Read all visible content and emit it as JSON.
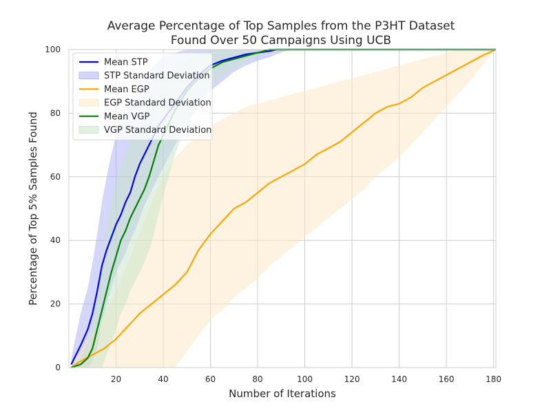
{
  "chart_data": {
    "type": "line",
    "title": "Average Percentage of Top Samples from the P3HT Dataset",
    "subtitle": "Found Over 50 Campaigns Using UCB",
    "xlabel": "Number of Iterations",
    "ylabel": "Percentage of Top 5% Samples Found",
    "xlim": [
      0,
      181
    ],
    "ylim": [
      0,
      100
    ],
    "xticks": [
      20,
      40,
      60,
      80,
      100,
      120,
      140,
      160,
      180
    ],
    "yticks": [
      0,
      20,
      40,
      60,
      80,
      100
    ],
    "grid": true,
    "legend_position": "top-left",
    "series": [
      {
        "name": "Mean STP",
        "band_name": "STP Standard Deviation",
        "color": "#0000ff",
        "band_color": "#aab0f5",
        "x": [
          1,
          3,
          5,
          8,
          10,
          12,
          14,
          16,
          18,
          20,
          22,
          24,
          26,
          28,
          30,
          32,
          34,
          36,
          38,
          40,
          45,
          50,
          55,
          60,
          65,
          70,
          75,
          80,
          85,
          88,
          92,
          96,
          100,
          181
        ],
        "mean": [
          1,
          4,
          7,
          12,
          17,
          24,
          32,
          37,
          41,
          45,
          48,
          52,
          55,
          60,
          64,
          67,
          70,
          73,
          76,
          78,
          83,
          88,
          92,
          95,
          96.5,
          97.5,
          98.5,
          99,
          99.5,
          100,
          100,
          100,
          100,
          100
        ],
        "upper": [
          3,
          10,
          17,
          25,
          33,
          42,
          52,
          60,
          67,
          73,
          77,
          80,
          83,
          86,
          89,
          91,
          93,
          95,
          96.5,
          98,
          99,
          100,
          100,
          100,
          100,
          100,
          100,
          100,
          100,
          100,
          100,
          100,
          100,
          100
        ],
        "lower": [
          0,
          0,
          0,
          0,
          2,
          6,
          14,
          20,
          25,
          30,
          33,
          36,
          40,
          43,
          47,
          51,
          54,
          57,
          60,
          63,
          70,
          77,
          82,
          87,
          90,
          93,
          95,
          96.5,
          97.5,
          98.5,
          99.5,
          100,
          100,
          100
        ]
      },
      {
        "name": "Mean EGP",
        "band_name": "EGP Standard Deviation",
        "color": "#ffa500",
        "band_color": "#fde8c4",
        "x": [
          1,
          5,
          10,
          15,
          20,
          25,
          30,
          35,
          40,
          45,
          50,
          55,
          60,
          65,
          70,
          75,
          80,
          85,
          90,
          95,
          100,
          105,
          110,
          115,
          120,
          125,
          130,
          135,
          140,
          145,
          150,
          155,
          160,
          165,
          170,
          175,
          181
        ],
        "mean": [
          0,
          2,
          4,
          6,
          9,
          13,
          17,
          20,
          23,
          26,
          30,
          37,
          42,
          46,
          50,
          52,
          55,
          58,
          60,
          62,
          64,
          67,
          69,
          71,
          74,
          77,
          80,
          82,
          83,
          85,
          88,
          90,
          92,
          94,
          96,
          98,
          100
        ],
        "upper": [
          2,
          5,
          11,
          17,
          24,
          33,
          42,
          52,
          60,
          66,
          70,
          73,
          76,
          78,
          80,
          82,
          83,
          84,
          85,
          86,
          87,
          88,
          89,
          90,
          91,
          92,
          93,
          94,
          95,
          96,
          97,
          98,
          99,
          100,
          100,
          100,
          100
        ],
        "lower": [
          0,
          0,
          0,
          0,
          0,
          0,
          0,
          0,
          0,
          0,
          5,
          10,
          15,
          18,
          22,
          25,
          28,
          32,
          35,
          38,
          41,
          44,
          47,
          50,
          53,
          56,
          60,
          63,
          66,
          70,
          74,
          78,
          82,
          86,
          90,
          95,
          100
        ]
      },
      {
        "name": "Mean VGP",
        "band_name": "VGP Standard Deviation",
        "color": "#008000",
        "band_color": "#c5e3c5",
        "x": [
          1,
          5,
          8,
          10,
          12,
          14,
          16,
          18,
          20,
          22,
          24,
          26,
          28,
          30,
          32,
          34,
          36,
          38,
          40,
          45,
          50,
          55,
          60,
          65,
          70,
          75,
          80,
          85,
          90,
          95,
          100,
          181
        ],
        "mean": [
          0,
          1,
          3,
          6,
          12,
          18,
          24,
          30,
          35,
          40,
          43,
          47,
          50,
          53,
          56,
          60,
          65,
          70,
          73,
          81,
          87,
          91,
          94,
          96,
          97,
          98,
          99,
          100,
          100,
          100,
          100,
          100
        ],
        "upper": [
          1,
          3,
          8,
          14,
          24,
          34,
          44,
          52,
          58,
          63,
          67,
          71,
          75,
          78,
          82,
          85,
          88,
          90,
          92,
          95,
          97,
          98.5,
          100,
          100,
          100,
          100,
          100,
          100,
          100,
          100,
          100,
          100
        ],
        "lower": [
          0,
          0,
          0,
          0,
          0,
          0,
          4,
          8,
          12,
          17,
          20,
          24,
          27,
          30,
          33,
          37,
          42,
          48,
          54,
          67,
          77,
          84,
          88,
          92,
          94,
          96,
          98,
          99,
          100,
          100,
          100,
          100
        ]
      }
    ]
  }
}
